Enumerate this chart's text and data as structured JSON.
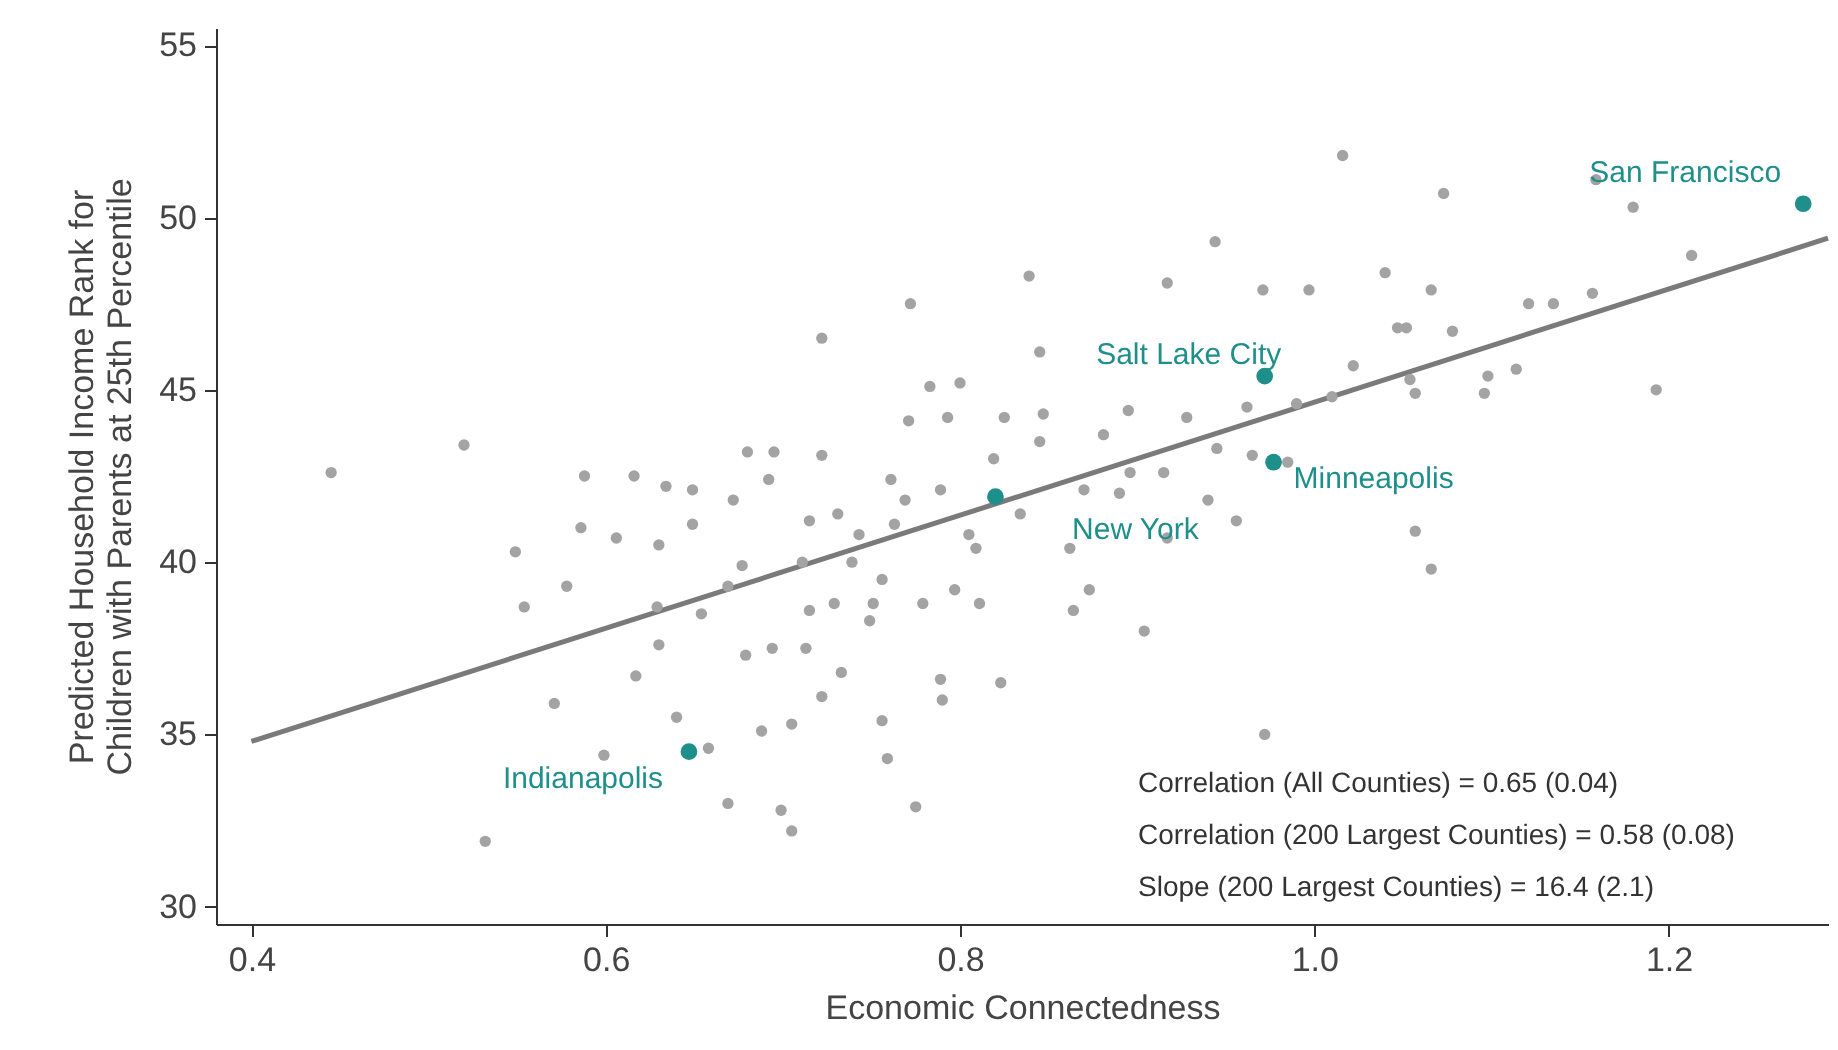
{
  "chart_data": {
    "type": "scatter",
    "xlabel": "Economic Connectedness",
    "ylabel": "Predicted Household Income Rank for\nChildren with Parents at 25th Percentile",
    "xlim": [
      0.38,
      1.29
    ],
    "ylim": [
      29.5,
      55.5
    ],
    "xticks": [
      0.4,
      0.6,
      0.8,
      {
        "value": 1,
        "label": "1.0"
      },
      1.2
    ],
    "yticks": [
      30,
      35,
      40,
      45,
      50,
      55
    ],
    "grid": false,
    "series": [
      {
        "color": "#a3a3a3",
        "marker": "circle",
        "x": [
          0.445,
          0.52,
          0.549,
          0.554,
          0.578,
          0.571,
          0.588,
          0.586,
          0.606,
          0.599,
          0.616,
          0.617,
          0.629,
          0.63,
          0.63,
          0.634,
          0.64,
          0.649,
          0.649,
          0.654,
          0.658,
          0.669,
          0.669,
          0.672,
          0.677,
          0.679,
          0.688,
          0.694,
          0.699,
          0.705,
          0.68,
          0.692,
          0.695,
          0.705,
          0.711,
          0.715,
          0.715,
          0.722,
          0.722,
          0.722,
          0.713,
          0.729,
          0.731,
          0.733,
          0.739,
          0.743,
          0.749,
          0.751,
          0.756,
          0.756,
          0.759,
          0.761,
          0.763,
          0.769,
          0.771,
          0.772,
          0.775,
          0.779,
          0.783,
          0.789,
          0.789,
          0.79,
          0.793,
          0.797,
          0.8,
          0.805,
          0.809,
          0.811,
          0.819,
          0.823,
          0.825,
          0.834,
          0.839,
          0.845,
          0.845,
          0.847,
          0.862,
          0.864,
          0.87,
          0.873,
          0.881,
          0.89,
          0.895,
          0.896,
          0.904,
          0.915,
          0.917,
          0.917,
          0.928,
          0.94,
          0.944,
          0.945,
          0.956,
          0.962,
          0.965,
          0.972,
          0.971,
          0.985,
          0.99,
          0.997,
          1.01,
          1.016,
          1.022,
          1.04,
          1.047,
          1.052,
          1.054,
          1.057,
          1.057,
          1.066,
          1.066,
          1.073,
          1.078,
          1.096,
          1.098,
          1.114,
          1.121,
          1.135,
          1.157,
          1.159,
          1.18,
          1.193,
          1.213,
          0.532
        ],
        "values": [
          42.6,
          43.4,
          40.3,
          38.7,
          39.3,
          35.9,
          42.5,
          41.0,
          40.7,
          34.4,
          42.5,
          36.7,
          38.7,
          37.6,
          40.5,
          42.2,
          35.5,
          42.1,
          41.1,
          38.5,
          34.6,
          39.3,
          33.0,
          41.8,
          39.9,
          37.3,
          35.1,
          37.5,
          32.8,
          32.2,
          43.2,
          42.4,
          43.2,
          35.3,
          40.0,
          38.6,
          41.2,
          43.1,
          36.1,
          46.5,
          37.5,
          38.8,
          41.4,
          36.8,
          40.0,
          40.8,
          38.3,
          38.8,
          39.5,
          35.4,
          34.3,
          42.4,
          41.1,
          41.8,
          44.1,
          47.5,
          32.9,
          38.8,
          45.1,
          42.1,
          36.6,
          36.0,
          44.2,
          39.2,
          45.2,
          40.8,
          40.4,
          38.8,
          43.0,
          36.5,
          44.2,
          41.4,
          48.3,
          46.1,
          43.5,
          44.3,
          40.4,
          38.6,
          42.1,
          39.2,
          43.7,
          42.0,
          44.4,
          42.6,
          38.0,
          42.6,
          48.1,
          40.7,
          44.2,
          41.8,
          49.3,
          43.3,
          41.2,
          44.5,
          43.1,
          35.0,
          47.9,
          42.9,
          44.6,
          47.9,
          44.8,
          51.8,
          45.7,
          48.4,
          46.8,
          46.8,
          45.3,
          40.9,
          44.9,
          47.9,
          39.8,
          50.7,
          46.7,
          44.9,
          45.4,
          45.6,
          47.5,
          47.5,
          47.8,
          51.1,
          50.3,
          45.0,
          48.9,
          31.9
        ]
      },
      {
        "color": "#1f8f8c",
        "marker": "circle",
        "x": [
          1.276,
          0.972,
          0.977,
          0.82,
          0.647
        ],
        "values": [
          50.4,
          45.4,
          42.9,
          41.9,
          34.5
        ]
      },
      {
        "type": "line",
        "color": "#7a7a7a",
        "marker": "none",
        "x": [
          0.4,
          1.29
        ],
        "values": [
          34.8,
          49.4
        ]
      }
    ],
    "annotations": [
      {
        "text": "San Francisco",
        "x": 1.276,
        "y": 50.4
      },
      {
        "text": "Salt Lake City",
        "x": 0.972,
        "y": 45.4
      },
      {
        "text": "Minneapolis",
        "x": 0.977,
        "y": 42.9
      },
      {
        "text": "New York",
        "x": 0.82,
        "y": 41.9
      },
      {
        "text": "Indianapolis",
        "x": 0.647,
        "y": 34.5
      },
      "Correlation (All Counties) = 0.65 (0.04)",
      "Correlation (200 Largest Counties) = 0.58 (0.08)",
      "Slope (200 Largest Counties) = 16.4 (2.1)"
    ]
  }
}
